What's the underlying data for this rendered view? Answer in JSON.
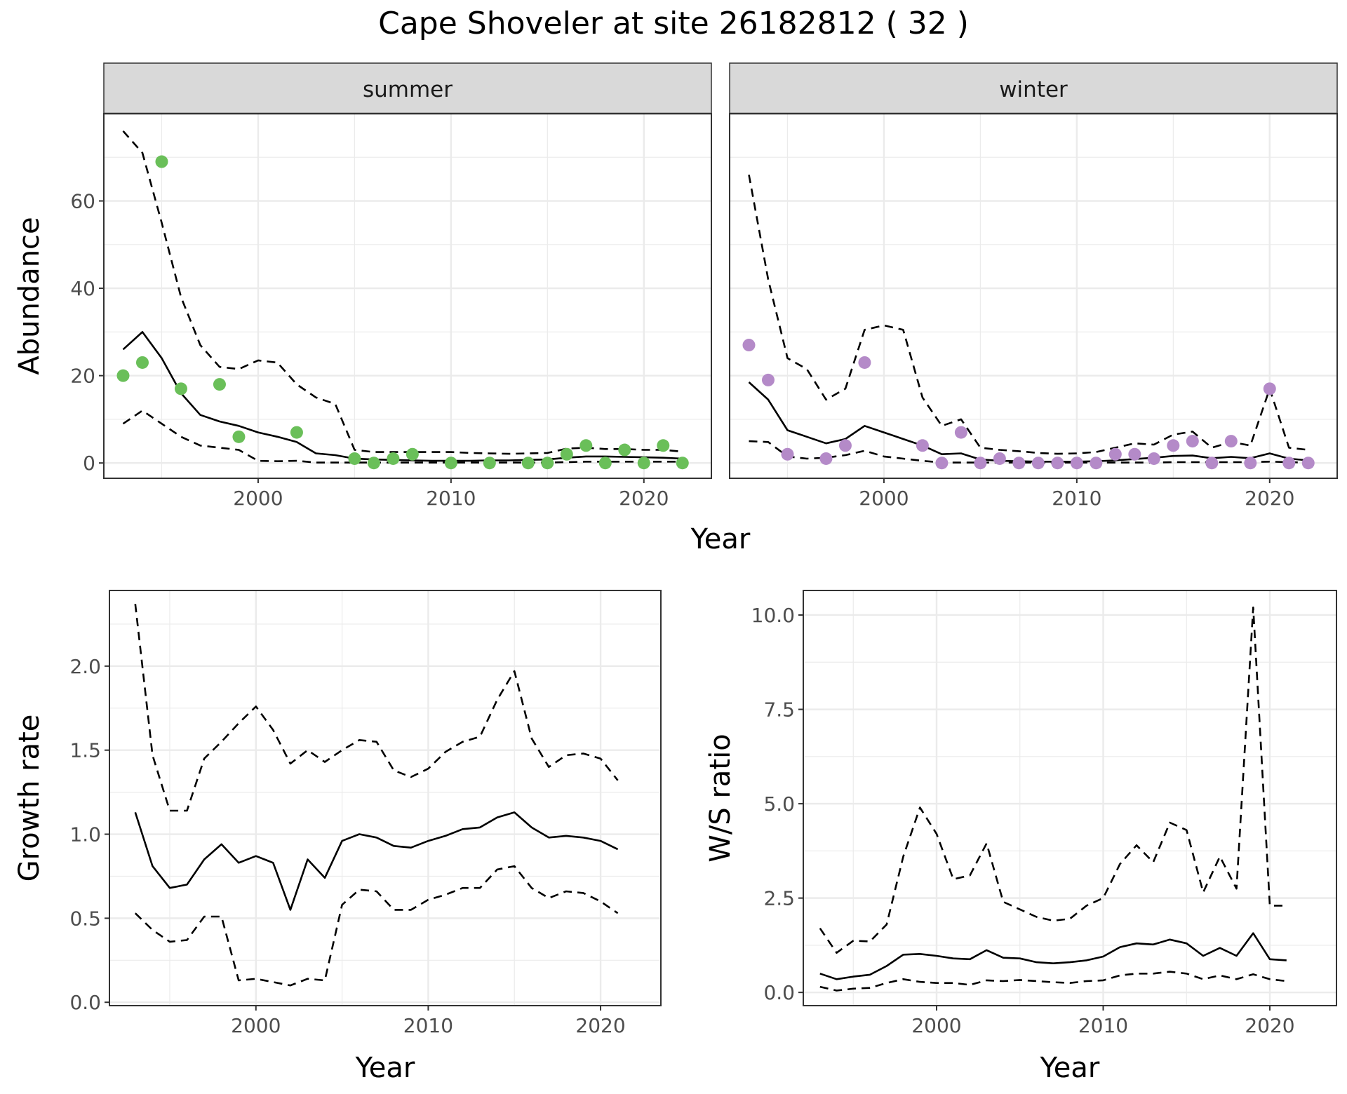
{
  "title": "Cape Shoveler at site 26182812 ( 32 )",
  "colors": {
    "summer_points": "#6abf59",
    "winter_points": "#b48ac8",
    "line": "#000000",
    "strip_bg": "#d9d9d9",
    "grid": "#ebebeb"
  },
  "chart_data": [
    {
      "type": "line",
      "panel": "summer",
      "strip_label": "summer",
      "xlabel": "Year",
      "ylabel": "Abundance",
      "xlim": [
        1992,
        2023.5
      ],
      "ylim": [
        -3.5,
        80
      ],
      "x_ticks": [
        2000,
        2010,
        2020
      ],
      "y_ticks": [
        0,
        20,
        40,
        60
      ],
      "grid": true,
      "points": {
        "x": [
          1993,
          1994,
          1995,
          1996,
          1998,
          1999,
          2002,
          2005,
          2006,
          2007,
          2008,
          2010,
          2012,
          2014,
          2015,
          2016,
          2017,
          2018,
          2019,
          2020,
          2021,
          2022
        ],
        "y": [
          20,
          23,
          69,
          17,
          18,
          6,
          7,
          1,
          0,
          1,
          2,
          0,
          0,
          0,
          0,
          2,
          4,
          0,
          3,
          0,
          4,
          0
        ]
      },
      "series": [
        {
          "style": "solid",
          "x": [
            1993,
            1994,
            1995,
            1996,
            1997,
            1998,
            1999,
            2000,
            2001,
            2002,
            2003,
            2004,
            2005,
            2006,
            2007,
            2008,
            2009,
            2010,
            2011,
            2012,
            2013,
            2014,
            2015,
            2016,
            2017,
            2018,
            2019,
            2020,
            2021,
            2022
          ],
          "y": [
            26,
            30,
            24,
            16,
            11,
            9.5,
            8.5,
            7,
            6,
            4.8,
            2.2,
            1.8,
            1,
            0.8,
            0.7,
            0.6,
            0.5,
            0.5,
            0.5,
            0.6,
            0.6,
            0.7,
            0.8,
            1.2,
            1.5,
            1.5,
            1.4,
            1.3,
            1.2,
            1.0
          ]
        },
        {
          "style": "dashed",
          "x": [
            1993,
            1994,
            1995,
            1996,
            1997,
            1998,
            1999,
            2000,
            2001,
            2002,
            2003,
            2004,
            2005,
            2006,
            2007,
            2008,
            2009,
            2010,
            2011,
            2012,
            2013,
            2014,
            2015,
            2016,
            2017,
            2018,
            2019,
            2020,
            2021,
            2022
          ],
          "y": [
            76,
            71,
            55,
            38,
            27,
            22,
            21.5,
            23.5,
            23,
            18,
            15,
            13.5,
            3,
            2.5,
            2.5,
            2.5,
            2.5,
            2.5,
            2.3,
            2.2,
            2.1,
            2.2,
            2.3,
            3.3,
            3.5,
            3.2,
            3.2,
            3,
            3,
            2.6
          ]
        },
        {
          "style": "dashed",
          "x": [
            1993,
            1994,
            1995,
            1996,
            1997,
            1998,
            1999,
            2000,
            2001,
            2002,
            2003,
            2004,
            2005,
            2006,
            2007,
            2008,
            2009,
            2010,
            2011,
            2012,
            2013,
            2014,
            2015,
            2016,
            2017,
            2018,
            2019,
            2020,
            2021,
            2022
          ],
          "y": [
            9,
            12,
            9,
            6,
            4,
            3.5,
            3,
            0.5,
            0.4,
            0.5,
            0.1,
            0.1,
            0.1,
            0.1,
            0.1,
            0.1,
            0.1,
            0.1,
            0.1,
            0.1,
            0.1,
            0.1,
            0.1,
            0.2,
            0.3,
            0.3,
            0.3,
            0.3,
            0.3,
            0.3
          ]
        }
      ]
    },
    {
      "type": "line",
      "panel": "winter",
      "strip_label": "winter",
      "xlabel": "Year",
      "ylabel": "Abundance",
      "xlim": [
        1992,
        2023.5
      ],
      "ylim": [
        -3.5,
        80
      ],
      "x_ticks": [
        2000,
        2010,
        2020
      ],
      "y_ticks": [
        0,
        20,
        40,
        60
      ],
      "grid": true,
      "points": {
        "x": [
          1993,
          1994,
          1995,
          1997,
          1998,
          1999,
          2002,
          2003,
          2004,
          2005,
          2006,
          2007,
          2008,
          2009,
          2010,
          2011,
          2012,
          2013,
          2014,
          2015,
          2016,
          2017,
          2018,
          2019,
          2020,
          2021,
          2022
        ],
        "y": [
          27,
          19,
          2,
          1,
          4,
          23,
          4,
          0,
          7,
          0,
          1,
          0,
          0,
          0,
          0,
          0,
          2,
          2,
          1,
          4,
          5,
          0,
          5,
          0,
          17,
          0,
          0
        ]
      },
      "series": [
        {
          "style": "solid",
          "x": [
            1993,
            1994,
            1995,
            1996,
            1997,
            1998,
            1999,
            2000,
            2001,
            2002,
            2003,
            2004,
            2005,
            2006,
            2007,
            2008,
            2009,
            2010,
            2011,
            2012,
            2013,
            2014,
            2015,
            2016,
            2017,
            2018,
            2019,
            2020,
            2021,
            2022
          ],
          "y": [
            18.5,
            14.5,
            7.5,
            6,
            4.5,
            5.5,
            8.5,
            7,
            5.5,
            4,
            2,
            2.2,
            0.8,
            0.5,
            0.4,
            0.3,
            0.3,
            0.3,
            0.4,
            0.6,
            0.9,
            1.2,
            1.6,
            1.7,
            1.1,
            1.4,
            1.1,
            2.2,
            1,
            0.6
          ]
        },
        {
          "style": "dashed",
          "x": [
            1993,
            1994,
            1995,
            1996,
            1997,
            1998,
            1999,
            2000,
            2001,
            2002,
            2003,
            2004,
            2005,
            2006,
            2007,
            2008,
            2009,
            2010,
            2011,
            2012,
            2013,
            2014,
            2015,
            2016,
            2017,
            2018,
            2019,
            2020,
            2021,
            2022
          ],
          "y": [
            66,
            42,
            24,
            21.5,
            14.5,
            17,
            30.5,
            31.5,
            30.5,
            15,
            8.5,
            10,
            3.5,
            3,
            2.7,
            2.3,
            2.1,
            2.2,
            2.5,
            3.5,
            4.5,
            4.2,
            6.5,
            7.2,
            3.5,
            4.8,
            4,
            17,
            3.5,
            3
          ]
        },
        {
          "style": "dashed",
          "x": [
            1993,
            1994,
            1995,
            1996,
            1997,
            1998,
            1999,
            2000,
            2001,
            2002,
            2003,
            2004,
            2005,
            2006,
            2007,
            2008,
            2009,
            2010,
            2011,
            2012,
            2013,
            2014,
            2015,
            2016,
            2017,
            2018,
            2019,
            2020,
            2021,
            2022
          ],
          "y": [
            5,
            4.8,
            1.5,
            1,
            1.2,
            1.8,
            2.8,
            1.5,
            1,
            0.5,
            0.1,
            0.1,
            0.1,
            0.1,
            0.1,
            0.1,
            0.1,
            0.1,
            0.1,
            0.1,
            0.1,
            0.1,
            0.2,
            0.2,
            0.2,
            0.2,
            0.2,
            0.3,
            0.2,
            0.1
          ]
        }
      ]
    },
    {
      "type": "line",
      "panel": "growth",
      "xlabel": "Year",
      "ylabel": "Growth rate",
      "xlim": [
        1991.5,
        2023.5
      ],
      "ylim": [
        -0.02,
        2.45
      ],
      "x_ticks": [
        2000,
        2010,
        2020
      ],
      "y_ticks": [
        0.0,
        0.5,
        1.0,
        1.5,
        2.0
      ],
      "y_tick_labels": [
        "0.0",
        "0.5",
        "1.0",
        "1.5",
        "2.0"
      ],
      "grid": true,
      "series": [
        {
          "style": "solid",
          "x": [
            1993,
            1994,
            1995,
            1996,
            1997,
            1998,
            1999,
            2000,
            2001,
            2002,
            2003,
            2004,
            2005,
            2006,
            2007,
            2008,
            2009,
            2010,
            2011,
            2012,
            2013,
            2014,
            2015,
            2016,
            2017,
            2018,
            2019,
            2020,
            2021
          ],
          "y": [
            1.13,
            0.81,
            0.68,
            0.7,
            0.85,
            0.94,
            0.83,
            0.87,
            0.83,
            0.55,
            0.85,
            0.74,
            0.96,
            1.0,
            0.98,
            0.93,
            0.92,
            0.96,
            0.99,
            1.03,
            1.04,
            1.1,
            1.13,
            1.04,
            0.98,
            0.99,
            0.98,
            0.96,
            0.91
          ]
        },
        {
          "style": "dashed",
          "x": [
            1993,
            1994,
            1995,
            1996,
            1997,
            1998,
            1999,
            2000,
            2001,
            2002,
            2003,
            2004,
            2005,
            2006,
            2007,
            2008,
            2009,
            2010,
            2011,
            2012,
            2013,
            2014,
            2015,
            2016,
            2017,
            2018,
            2019,
            2020,
            2021
          ],
          "y": [
            2.37,
            1.47,
            1.14,
            1.14,
            1.45,
            1.55,
            1.66,
            1.76,
            1.62,
            1.42,
            1.5,
            1.43,
            1.5,
            1.56,
            1.55,
            1.38,
            1.34,
            1.39,
            1.49,
            1.55,
            1.58,
            1.8,
            1.97,
            1.57,
            1.4,
            1.47,
            1.48,
            1.45,
            1.32
          ]
        },
        {
          "style": "dashed",
          "x": [
            1993,
            1994,
            1995,
            1996,
            1997,
            1998,
            1999,
            2000,
            2001,
            2002,
            2003,
            2004,
            2005,
            2006,
            2007,
            2008,
            2009,
            2010,
            2011,
            2012,
            2013,
            2014,
            2015,
            2016,
            2017,
            2018,
            2019,
            2020,
            2021
          ],
          "y": [
            0.53,
            0.43,
            0.36,
            0.37,
            0.51,
            0.51,
            0.13,
            0.14,
            0.12,
            0.1,
            0.14,
            0.13,
            0.58,
            0.67,
            0.66,
            0.55,
            0.55,
            0.61,
            0.64,
            0.68,
            0.68,
            0.79,
            0.81,
            0.68,
            0.62,
            0.66,
            0.65,
            0.6,
            0.53
          ]
        }
      ]
    },
    {
      "type": "line",
      "panel": "ratio",
      "xlabel": "Year",
      "ylabel": "W/S ratio",
      "xlim": [
        1992,
        2024
      ],
      "ylim": [
        -0.35,
        10.65
      ],
      "x_ticks": [
        2000,
        2010,
        2020
      ],
      "y_ticks": [
        0.0,
        2.5,
        5.0,
        7.5,
        10.0
      ],
      "y_tick_labels": [
        "0.0",
        "2.5",
        "5.0",
        "7.5",
        "10.0"
      ],
      "grid": true,
      "series": [
        {
          "style": "solid",
          "x": [
            1993,
            1994,
            1995,
            1996,
            1997,
            1998,
            1999,
            2000,
            2001,
            2002,
            2003,
            2004,
            2005,
            2006,
            2007,
            2008,
            2009,
            2010,
            2011,
            2012,
            2013,
            2014,
            2015,
            2016,
            2017,
            2018,
            2019,
            2020,
            2021
          ],
          "y": [
            0.5,
            0.35,
            0.42,
            0.47,
            0.7,
            1.0,
            1.02,
            0.97,
            0.9,
            0.88,
            1.12,
            0.92,
            0.9,
            0.8,
            0.77,
            0.8,
            0.85,
            0.95,
            1.2,
            1.3,
            1.27,
            1.4,
            1.3,
            0.97,
            1.18,
            0.97,
            1.57,
            0.88,
            0.85
          ]
        },
        {
          "style": "dashed",
          "x": [
            1993,
            1994,
            1995,
            1996,
            1997,
            1998,
            1999,
            2000,
            2001,
            2002,
            2003,
            2004,
            2005,
            2006,
            2007,
            2008,
            2009,
            2010,
            2011,
            2012,
            2013,
            2014,
            2015,
            2016,
            2017,
            2018,
            2019,
            2020,
            2021
          ],
          "y": [
            1.7,
            1.05,
            1.37,
            1.35,
            1.8,
            3.6,
            4.9,
            4.2,
            3.0,
            3.1,
            3.95,
            2.4,
            2.2,
            2.0,
            1.9,
            1.95,
            2.3,
            2.5,
            3.4,
            3.9,
            3.45,
            4.5,
            4.3,
            2.65,
            3.6,
            2.75,
            10.2,
            2.3,
            2.3
          ]
        },
        {
          "style": "dashed",
          "x": [
            1993,
            1994,
            1995,
            1996,
            1997,
            1998,
            1999,
            2000,
            2001,
            2002,
            2003,
            2004,
            2005,
            2006,
            2007,
            2008,
            2009,
            2010,
            2011,
            2012,
            2013,
            2014,
            2015,
            2016,
            2017,
            2018,
            2019,
            2020,
            2021
          ],
          "y": [
            0.15,
            0.05,
            0.1,
            0.12,
            0.25,
            0.35,
            0.28,
            0.25,
            0.25,
            0.2,
            0.32,
            0.3,
            0.33,
            0.3,
            0.27,
            0.25,
            0.3,
            0.32,
            0.45,
            0.5,
            0.5,
            0.55,
            0.5,
            0.35,
            0.45,
            0.35,
            0.48,
            0.35,
            0.3
          ]
        }
      ]
    }
  ]
}
